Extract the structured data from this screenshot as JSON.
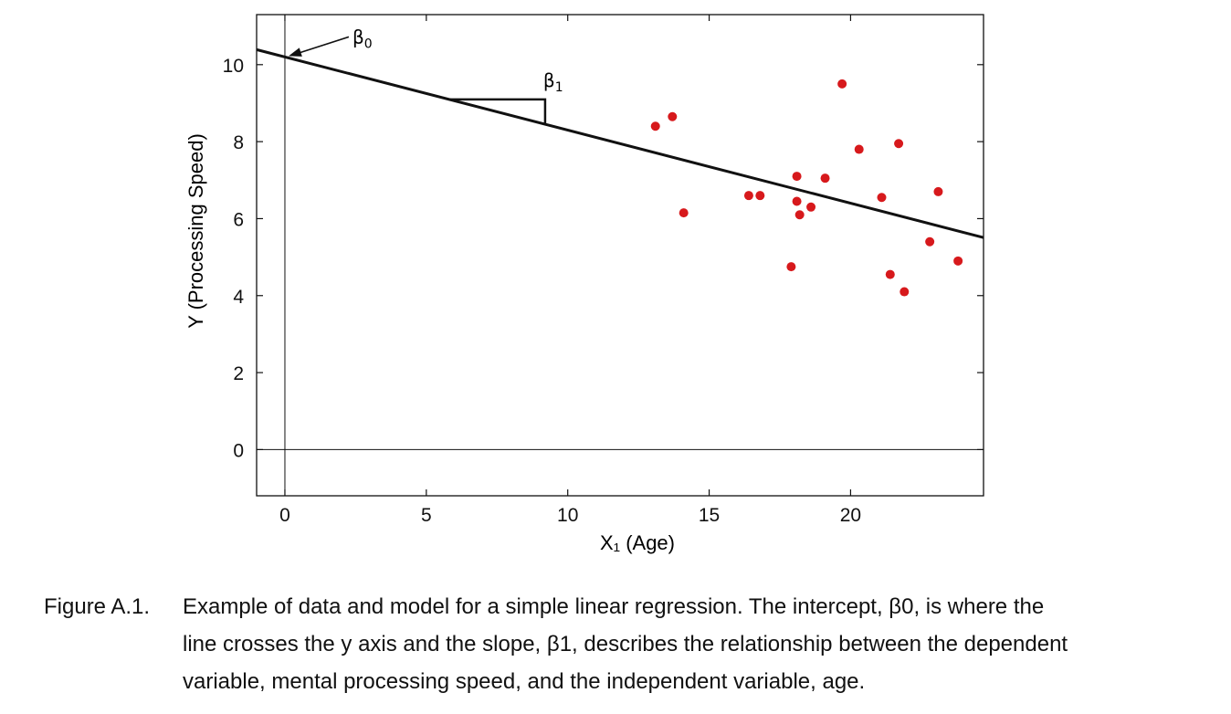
{
  "chart_data": {
    "type": "scatter",
    "title": "",
    "xlabel": "X₁ (Age)",
    "ylabel": "Y (Processing Speed)",
    "xlim": [
      -1,
      24.7
    ],
    "ylim": [
      -1.2,
      11.3
    ],
    "xticks": [
      0,
      5,
      10,
      15,
      20
    ],
    "yticks": [
      0,
      2,
      4,
      6,
      8,
      10
    ],
    "grid": false,
    "legend": "none",
    "point_color": "#d7191c",
    "line_color": "#111111",
    "series": [
      {
        "type": "scatter",
        "points": [
          [
            13.1,
            8.4
          ],
          [
            13.7,
            8.65
          ],
          [
            14.1,
            6.15
          ],
          [
            16.4,
            6.6
          ],
          [
            16.8,
            6.6
          ],
          [
            17.9,
            4.75
          ],
          [
            18.1,
            7.1
          ],
          [
            18.1,
            6.45
          ],
          [
            18.2,
            6.1
          ],
          [
            18.6,
            6.3
          ],
          [
            19.1,
            7.05
          ],
          [
            19.7,
            9.5
          ],
          [
            20.3,
            7.8
          ],
          [
            21.1,
            6.55
          ],
          [
            21.4,
            4.55
          ],
          [
            21.7,
            7.95
          ],
          [
            21.9,
            4.1
          ],
          [
            22.8,
            5.4
          ],
          [
            23.1,
            6.7
          ],
          [
            23.8,
            4.9
          ]
        ]
      },
      {
        "type": "line",
        "intercept": 10.2,
        "slope": -0.19
      }
    ],
    "annotations": {
      "beta0": "β0",
      "beta1": "β1",
      "slope_triangle_x": [
        5.8,
        9.2
      ]
    }
  },
  "caption": {
    "label": "Figure A.1.",
    "lines": [
      "Example of data and model for a simple linear regression. The intercept, β0, is where the",
      "line crosses the y axis and the slope, β1, describes the relationship between the dependent",
      "variable, mental processing speed, and the independent variable, age."
    ]
  }
}
